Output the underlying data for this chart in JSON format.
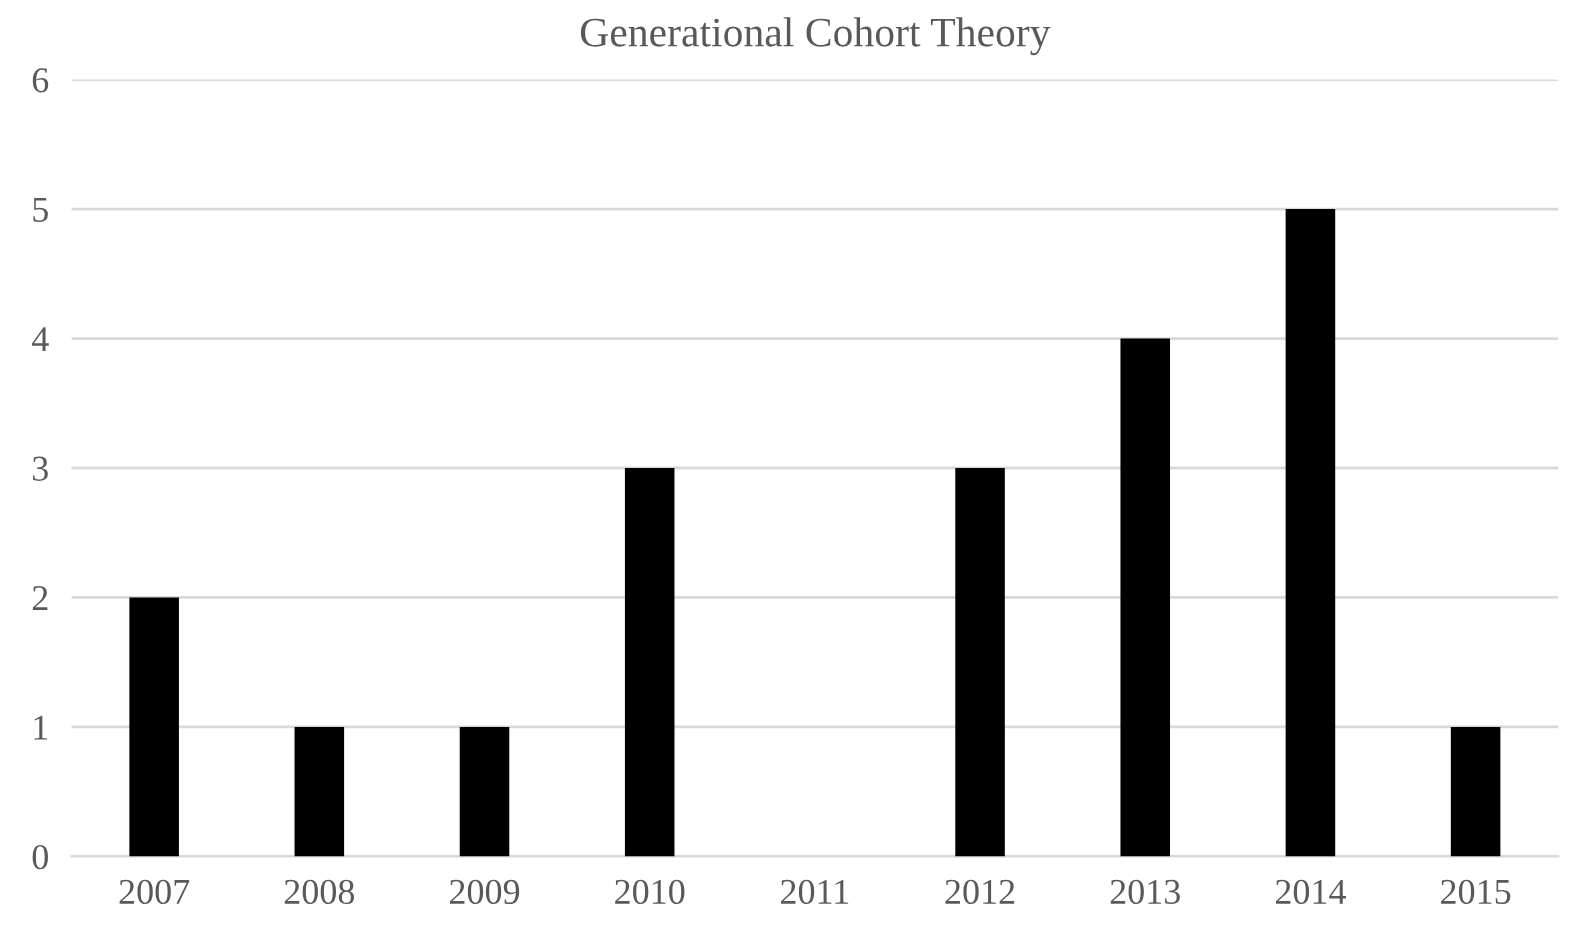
{
  "chart_data": {
    "type": "bar",
    "title": "Generational Cohort Theory",
    "categories": [
      "2007",
      "2008",
      "2009",
      "2010",
      "2011",
      "2012",
      "2013",
      "2014",
      "2015"
    ],
    "values": [
      2,
      1,
      1,
      3,
      0,
      3,
      4,
      5,
      1
    ],
    "color": "#000000",
    "ylim": [
      0,
      6
    ],
    "yticks": [
      0,
      1,
      2,
      3,
      4,
      5,
      6
    ],
    "grid": "y"
  }
}
